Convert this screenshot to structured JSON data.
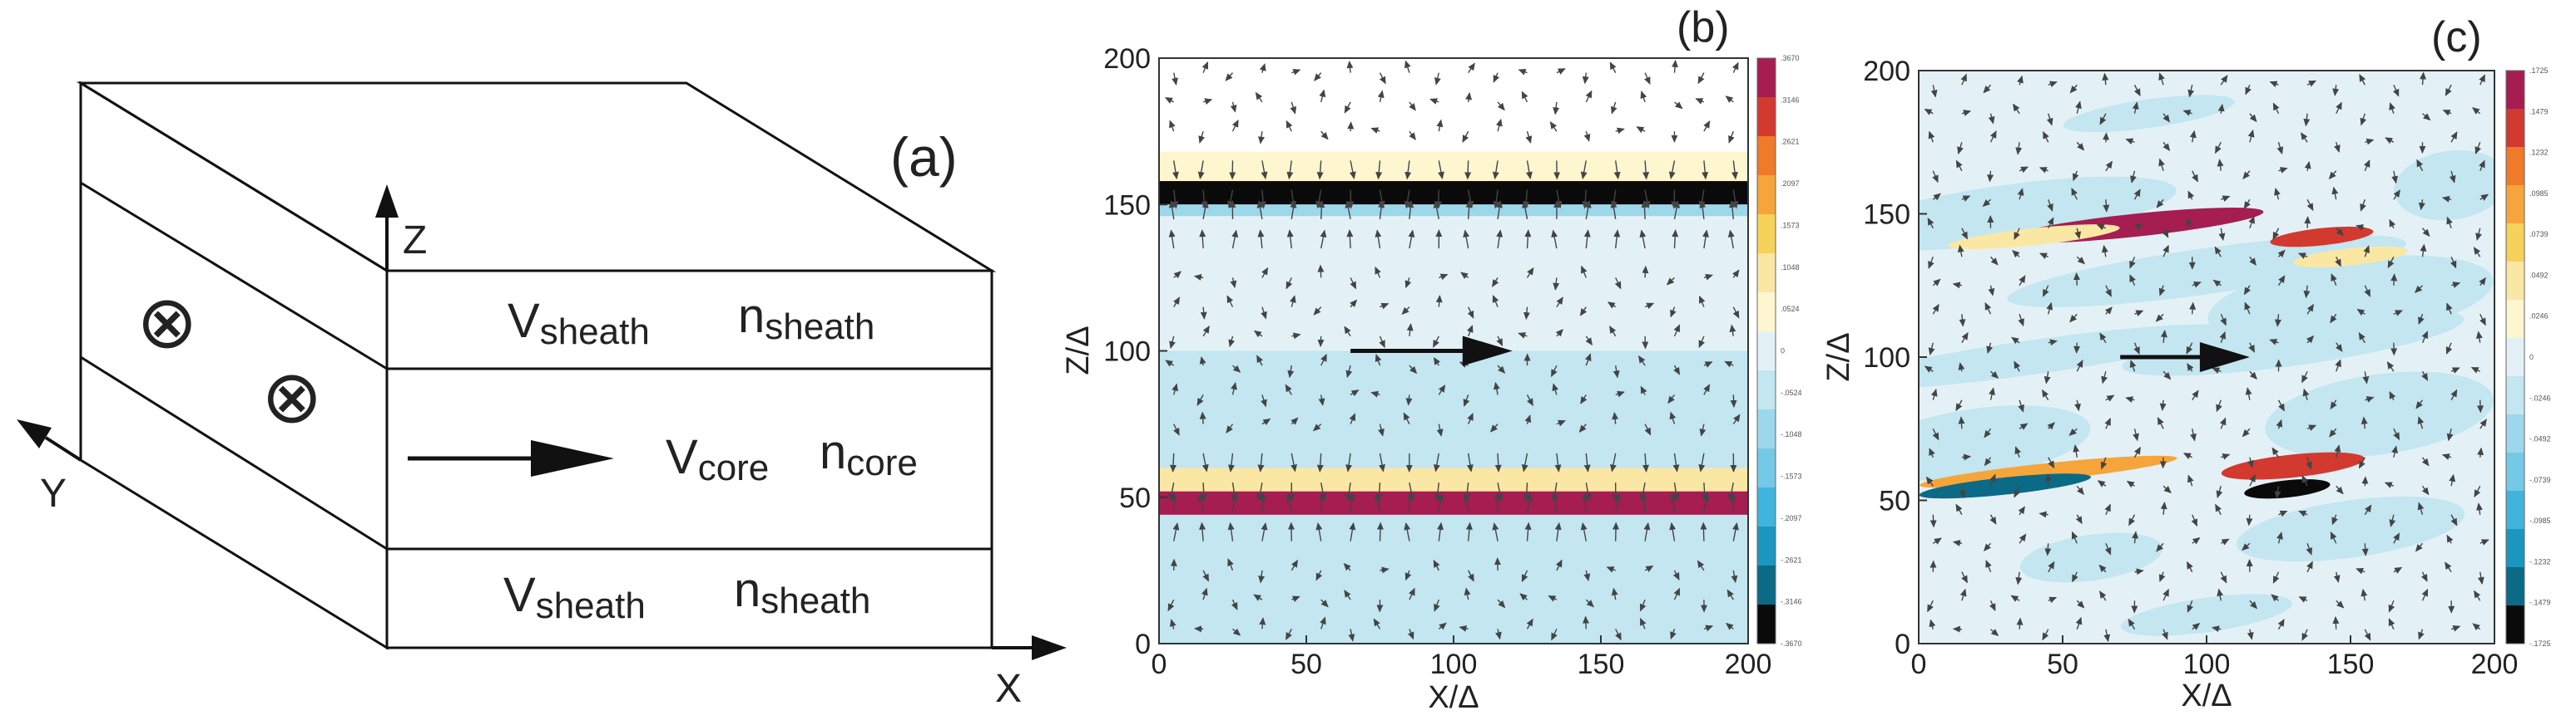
{
  "panel_a": {
    "label": "(a)",
    "axes": {
      "z": "Z",
      "x": "X",
      "y": "Y"
    },
    "into_page_symbol": "⊗",
    "layers": {
      "top": {
        "v": "V",
        "v_sub": "sheath",
        "n": "n",
        "n_sub": "sheath"
      },
      "core": {
        "v": "V",
        "v_sub": "core",
        "n": "n",
        "n_sub": "core"
      },
      "bottom": {
        "v": "V",
        "v_sub": "sheath",
        "n": "n",
        "n_sub": "sheath"
      }
    }
  },
  "chart_data": [
    {
      "type": "heatmap",
      "panel_label": "(b)",
      "title": "",
      "xlabel": "X/Δ",
      "ylabel": "Z/Δ",
      "xlim": [
        0,
        200
      ],
      "ylim": [
        0,
        200
      ],
      "xticks": [
        "0",
        "50",
        "100",
        "150",
        "200"
      ],
      "yticks": [
        "0",
        "50",
        "100",
        "150",
        "200"
      ],
      "colorbar_ticks": [
        ".3670",
        ".3146",
        ".2621",
        ".2097",
        ".1573",
        ".1048",
        ".0524",
        "0",
        "-.0524",
        "-.1048",
        "-.1573",
        "-.2097",
        "-.2621",
        "-.3146",
        "-.3670"
      ],
      "colorbar_range": [
        -0.367,
        0.367
      ],
      "bands": [
        {
          "z_min": 158,
          "z_max": 168,
          "value": 0.06
        },
        {
          "z_min": 150,
          "z_max": 158,
          "value": -0.367
        },
        {
          "z_min": 146,
          "z_max": 150,
          "value": -0.08
        },
        {
          "z_min": 100,
          "z_max": 146,
          "value": 0.01
        },
        {
          "z_min": 60,
          "z_max": 100,
          "value": -0.03
        },
        {
          "z_min": 52,
          "z_max": 60,
          "value": 0.12
        },
        {
          "z_min": 44,
          "z_max": 52,
          "value": 0.367
        },
        {
          "z_min": 40,
          "z_max": 44,
          "value": -0.06
        },
        {
          "z_min": 0,
          "z_max": 40,
          "value": -0.03
        }
      ],
      "flow_arrow": {
        "x_start": 65,
        "x_end": 120,
        "z": 100
      }
    },
    {
      "type": "heatmap",
      "panel_label": "(c)",
      "title": "",
      "xlabel": "X/Δ",
      "ylabel": "Z/Δ",
      "xlim": [
        0,
        200
      ],
      "ylim": [
        0,
        200
      ],
      "xticks": [
        "0",
        "50",
        "100",
        "150",
        "200"
      ],
      "yticks": [
        "0",
        "50",
        "100",
        "150",
        "200"
      ],
      "colorbar_ticks": [
        ".1725",
        ".1479",
        ".1232",
        ".0985",
        ".0739",
        ".0492",
        ".0246",
        "0",
        "-.0246",
        "-.0492",
        "-.0739",
        "-.0985",
        "-.1232",
        "-.1479",
        "-.1725"
      ],
      "colorbar_range": [
        -0.1725,
        0.1725
      ],
      "structures": [
        {
          "x": 75,
          "z": 146,
          "rx": 45,
          "rz": 4,
          "value": 0.16
        },
        {
          "x": 40,
          "z": 142,
          "rx": 30,
          "rz": 3,
          "value": 0.04
        },
        {
          "x": 140,
          "z": 142,
          "rx": 18,
          "rz": 3,
          "value": 0.13
        },
        {
          "x": 150,
          "z": 135,
          "rx": 20,
          "rz": 3,
          "value": 0.05
        },
        {
          "x": 45,
          "z": 60,
          "rx": 45,
          "rz": 3,
          "value": 0.09
        },
        {
          "x": 30,
          "z": 55,
          "rx": 30,
          "rz": 3,
          "value": -0.13
        },
        {
          "x": 130,
          "z": 62,
          "rx": 25,
          "rz": 4,
          "value": 0.14
        },
        {
          "x": 128,
          "z": 54,
          "rx": 15,
          "rz": 3,
          "value": -0.1725
        }
      ],
      "flow_arrow": {
        "x_start": 70,
        "x_end": 115,
        "z": 100
      }
    }
  ]
}
